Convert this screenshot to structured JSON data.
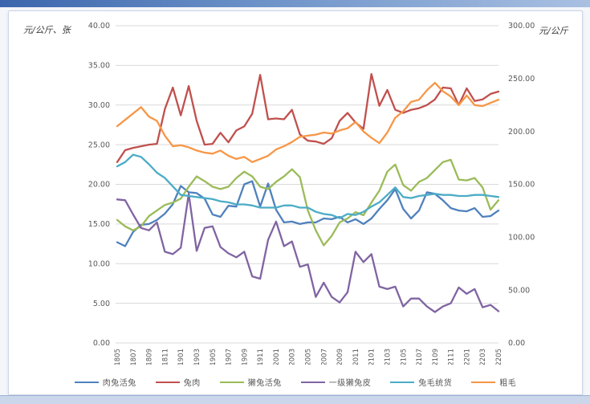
{
  "panel": {
    "background": "#ffffff",
    "page_top_bar_color": "#3b66ad"
  },
  "chart_data": {
    "type": "line",
    "title": "",
    "grid": true,
    "legend_position": "bottom",
    "left_axis": {
      "label": "元/公斤、张",
      "min": 0,
      "max": 40,
      "step": 5,
      "ticks": [
        "40.00",
        "35.00",
        "30.00",
        "25.00",
        "20.00",
        "15.00",
        "10.00",
        "5.00",
        "0.00"
      ]
    },
    "right_axis": {
      "label": "元/公斤",
      "min": 0,
      "max": 300,
      "step": 50,
      "ticks": [
        "300.00",
        "250.00",
        "200.00",
        "150.00",
        "100.00",
        "50.00",
        "0.00"
      ]
    },
    "x": [
      "201805",
      "201806",
      "201807",
      "201808",
      "201809",
      "201810",
      "201811",
      "201812",
      "201901",
      "201902",
      "201903",
      "201904",
      "201905",
      "201906",
      "201907",
      "201908",
      "201909",
      "201910",
      "201911",
      "201912",
      "202001",
      "202002",
      "202003",
      "202004",
      "202005",
      "202006",
      "202007",
      "202008",
      "202009",
      "202010",
      "202011",
      "202012",
      "202101",
      "202102",
      "202103",
      "202104",
      "202105",
      "202106",
      "202107",
      "202108",
      "202109",
      "202110",
      "202111",
      "202112",
      "202201",
      "202202",
      "202203",
      "202204",
      "202205"
    ],
    "x_tick_every": 2,
    "x_tick_labels": [
      "201805",
      "201807",
      "201809",
      "201811",
      "201901",
      "201903",
      "201905",
      "201907",
      "201909",
      "201911",
      "202001",
      "202003",
      "202005",
      "202007",
      "202009",
      "202011",
      "202101",
      "202103",
      "202105",
      "202107",
      "202109",
      "202111",
      "202201",
      "202203",
      "202205"
    ],
    "series": [
      {
        "name": "肉兔活兔",
        "axis": "left",
        "color": "#4F81BD",
        "values": [
          12.7,
          12.2,
          14.0,
          14.9,
          15.0,
          15.5,
          16.3,
          17.5,
          19.8,
          19.0,
          18.9,
          18.2,
          16.2,
          15.9,
          17.3,
          17.2,
          20.0,
          20.4,
          17.2,
          20.1,
          16.8,
          15.2,
          15.3,
          15.0,
          15.2,
          15.2,
          15.7,
          15.6,
          15.9,
          15.2,
          15.6,
          15.0,
          15.7,
          16.9,
          18.0,
          19.4,
          16.9,
          15.7,
          16.7,
          19.0,
          18.8,
          18.0,
          17.0,
          16.7,
          16.6,
          17.0,
          15.9,
          16.0,
          16.7
        ]
      },
      {
        "name": "兔肉",
        "axis": "left",
        "color": "#C0504D",
        "values": [
          22.8,
          24.3,
          24.6,
          24.8,
          25.0,
          25.1,
          29.5,
          32.2,
          28.7,
          32.4,
          28.0,
          25.0,
          25.1,
          26.5,
          25.3,
          26.8,
          27.3,
          28.9,
          33.8,
          28.2,
          28.3,
          28.2,
          29.4,
          26.3,
          25.5,
          25.4,
          25.1,
          25.8,
          28.0,
          29.0,
          27.8,
          27.0,
          33.9,
          29.9,
          31.9,
          29.4,
          29.0,
          29.4,
          29.6,
          30.0,
          30.7,
          32.2,
          32.1,
          30.0,
          32.1,
          30.5,
          30.7,
          31.4,
          31.7
        ]
      },
      {
        "name": "獭兔活兔",
        "axis": "left",
        "color": "#9BBB59",
        "values": [
          15.5,
          14.7,
          14.2,
          14.7,
          16.0,
          16.7,
          17.4,
          17.7,
          18.2,
          19.7,
          21.0,
          20.4,
          19.7,
          19.4,
          19.7,
          20.8,
          21.6,
          21.0,
          19.7,
          19.4,
          20.3,
          21.0,
          21.9,
          20.9,
          16.7,
          14.2,
          12.3,
          13.5,
          15.2,
          15.7,
          16.5,
          16.1,
          17.7,
          19.2,
          21.6,
          22.5,
          19.9,
          19.2,
          20.3,
          20.8,
          21.8,
          22.8,
          23.1,
          20.6,
          20.5,
          20.8,
          19.6,
          16.8,
          18.0
        ]
      },
      {
        "name": "一级獭兔皮",
        "axis": "left",
        "color": "#8064A2",
        "values": [
          18.1,
          18.0,
          16.2,
          14.5,
          14.2,
          15.2,
          11.5,
          11.2,
          12.0,
          18.8,
          11.6,
          14.5,
          14.7,
          12.1,
          11.3,
          10.8,
          11.5,
          8.4,
          8.1,
          13.0,
          15.3,
          12.2,
          12.8,
          9.6,
          9.9,
          5.8,
          7.6,
          5.8,
          5.1,
          6.4,
          11.5,
          10.2,
          11.2,
          7.1,
          6.8,
          7.1,
          4.6,
          5.6,
          5.6,
          4.6,
          3.9,
          4.6,
          5.0,
          7.0,
          6.2,
          6.8,
          4.5,
          4.8,
          4.0
        ]
      },
      {
        "name": "兔毛统货",
        "axis": "right",
        "color": "#4BACC6",
        "values": [
          167,
          171,
          178,
          176,
          169,
          161,
          156,
          148,
          140,
          139,
          138,
          137,
          136,
          134,
          133,
          131,
          131,
          130,
          128,
          128,
          128,
          130,
          130,
          128,
          128,
          124,
          122,
          121,
          118,
          122,
          121,
          124,
          129,
          133,
          140,
          147,
          138,
          137,
          139,
          140,
          141,
          140,
          140,
          139,
          139,
          140,
          140,
          139,
          138
        ]
      },
      {
        "name": "粗毛",
        "axis": "right",
        "color": "#F79646",
        "values": [
          205,
          211,
          217,
          223,
          214,
          210,
          196,
          186,
          187,
          185,
          182,
          180,
          179,
          182,
          177,
          174,
          176,
          171,
          174,
          177,
          183,
          186,
          190,
          195,
          196,
          197,
          199,
          198,
          201,
          203,
          209,
          200,
          194,
          189,
          199,
          213,
          219,
          228,
          230,
          239,
          246,
          238,
          233,
          225,
          234,
          225,
          224,
          227,
          230
        ]
      }
    ]
  }
}
